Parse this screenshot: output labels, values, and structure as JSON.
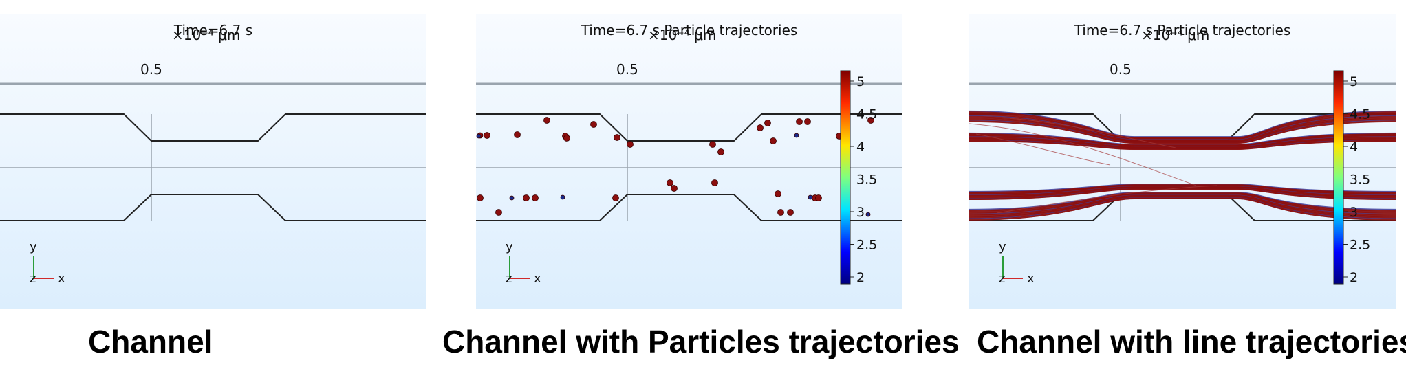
{
  "panels": [
    {
      "time_label": "Time=6.7 s",
      "exponent_label": "×10⁻⁴ μm",
      "tick_label": "0.5",
      "axis_y": "y",
      "axis_x": "x",
      "axis_z": "z",
      "caption": "Channel"
    },
    {
      "time_label": "Time=6.7 s  Particle trajectories",
      "exponent_label": "×10⁻⁴ μm",
      "tick_label": "0.5",
      "axis_y": "y",
      "axis_x": "x",
      "axis_z": "z",
      "caption": "Channel with Particles trajectories",
      "colorbar_ticks": [
        "5",
        "4.5",
        "4",
        "3.5",
        "3",
        "2.5",
        "2"
      ]
    },
    {
      "time_label": "Time=6.7 s  Particle trajectories",
      "exponent_label": "×10⁻⁴ μm",
      "tick_label": "0.5",
      "axis_y": "y",
      "axis_x": "x",
      "axis_z": "z",
      "caption": "Channel with line trajectories",
      "colorbar_ticks": [
        "5",
        "4.5",
        "4",
        "3.5",
        "3",
        "2.5",
        "2"
      ]
    }
  ],
  "colors": {
    "particle": "#8b0e0e",
    "particle_slow": "#1a2a8a",
    "channel_wall": "#222222",
    "grid": "#9aa4ae"
  }
}
